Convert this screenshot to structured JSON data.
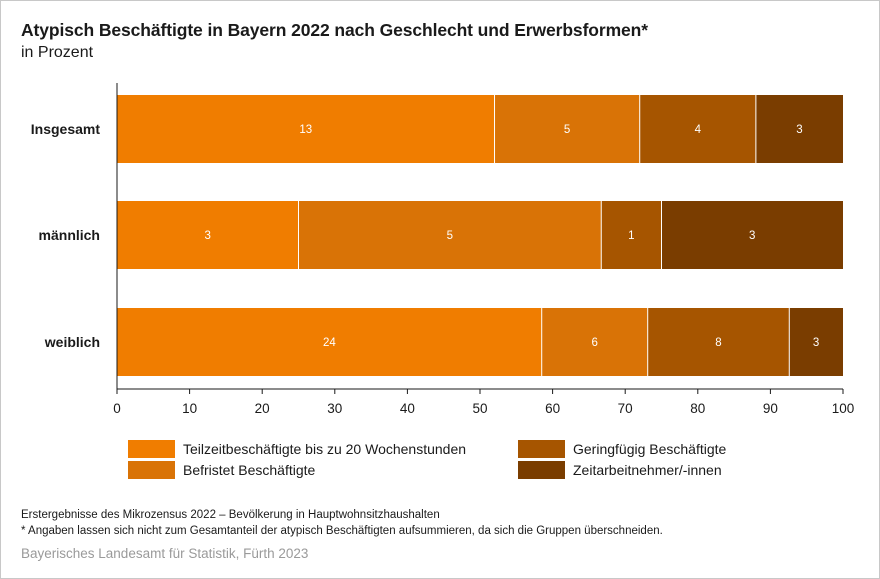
{
  "header": {
    "title": "Atypisch Beschäftigte in Bayern 2022 nach Geschlecht und Erwerbsformen*",
    "subtitle": "in Prozent"
  },
  "chart_data": {
    "type": "bar",
    "orientation": "horizontal",
    "stacked": true,
    "categories": [
      "Insgesamt",
      "männlich",
      "weiblich"
    ],
    "series": [
      {
        "name": "Teilzeitbeschäftigte bis zu 20 Wochenstunden",
        "color": "#F07D00",
        "values": [
          52,
          25,
          58.5
        ],
        "labels": [
          "13",
          "3",
          "24"
        ]
      },
      {
        "name": "Befristet Beschäftigte",
        "color": "#D97306",
        "values": [
          20,
          41.7,
          14.6
        ],
        "labels": [
          "5",
          "5",
          "6"
        ]
      },
      {
        "name": "Geringfügig Beschäftigte",
        "color": "#A65500",
        "values": [
          16,
          8.3,
          19.5
        ],
        "labels": [
          "4",
          "1",
          "8"
        ]
      },
      {
        "name": "Zeitarbeitnehmer/-innen",
        "color": "#7A3D00",
        "values": [
          12,
          25,
          7.4
        ],
        "labels": [
          "3",
          "3",
          "3"
        ]
      }
    ],
    "xlim": [
      0,
      100
    ],
    "xticks": [
      "0",
      "10",
      "20",
      "30",
      "40",
      "50",
      "60",
      "70",
      "80",
      "90",
      "100"
    ],
    "xlabel": "",
    "ylabel": "",
    "legend_position": "bottom"
  },
  "notes": {
    "line1": "Erstergebnisse des Mikrozensus 2022 – Bevölkerung in Hauptwohnsitzhaushalten",
    "line2": "*  Angaben lassen sich nicht zum Gesamtanteil der atypisch Beschäftigten aufsummieren, da sich die Gruppen überschneiden."
  },
  "source": "Bayerisches Landesamt für Statistik, Fürth 2023"
}
